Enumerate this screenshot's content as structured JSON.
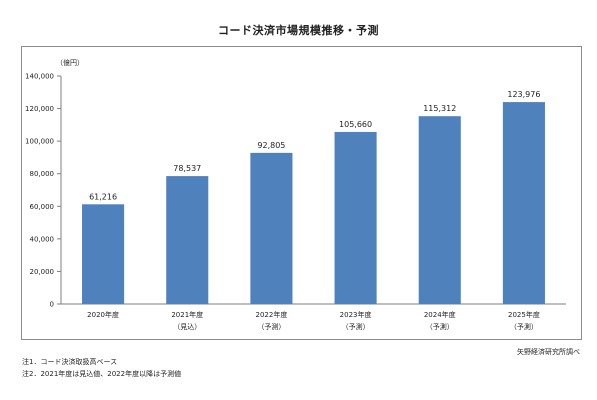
{
  "chart_data": {
    "type": "bar",
    "title": "コード決済市場規模推移・予測",
    "unit_label": "（億円）",
    "categories": [
      {
        "year": "2020年度",
        "sub": ""
      },
      {
        "year": "2021年度",
        "sub": "（見込）"
      },
      {
        "year": "2022年度",
        "sub": "（予測）"
      },
      {
        "year": "2023年度",
        "sub": "（予測）"
      },
      {
        "year": "2024年度",
        "sub": "（予測）"
      },
      {
        "year": "2025年度",
        "sub": "（予測）"
      }
    ],
    "values": [
      61216,
      78537,
      92805,
      105660,
      115312,
      123976
    ],
    "value_labels": [
      "61,216",
      "78,537",
      "92,805",
      "105,660",
      "115,312",
      "123,976"
    ],
    "ylim": [
      0,
      140000
    ],
    "yticks": [
      0,
      20000,
      40000,
      60000,
      80000,
      100000,
      120000,
      140000
    ],
    "ytick_labels": [
      "0",
      "20,000",
      "40,000",
      "60,000",
      "80,000",
      "100,000",
      "120,000",
      "140,000"
    ],
    "bar_color": "#4f81bd",
    "grid": false
  },
  "notes": [
    "注1．コード決済取扱高ベース",
    "注2．2021年度は見込値、2022年度以降は予測値"
  ],
  "source": "矢野経済研究所調べ"
}
